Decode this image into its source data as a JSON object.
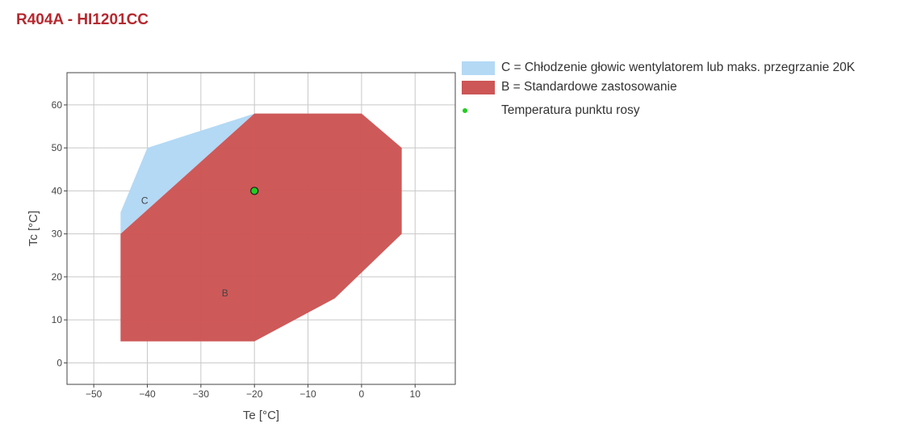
{
  "title": "R404A - HI1201CC",
  "chart_data": {
    "type": "area",
    "xlabel": "Te [°C]",
    "ylabel": "Tc [°C]",
    "xlim": [
      -55,
      17.5
    ],
    "ylim": [
      -5,
      67.5
    ],
    "x_ticks": [
      -50,
      -40,
      -30,
      -20,
      -10,
      0,
      10
    ],
    "x_tick_labels": [
      "−50",
      "−40",
      "−30",
      "−20",
      "−10",
      "0",
      "10"
    ],
    "y_ticks": [
      0,
      10,
      20,
      30,
      40,
      50,
      60
    ],
    "y_tick_labels": [
      "0",
      "10",
      "20",
      "30",
      "40",
      "50",
      "60"
    ],
    "grid": true,
    "legend_placement": "right",
    "series": [
      {
        "name": "C = Chłodzenie głowic wentylatorem lub maks. przegrzanie 20K",
        "label": "C",
        "label_at": [
          -40.5,
          37
        ],
        "color": "#b3d9f5",
        "points": [
          [
            -45,
            30
          ],
          [
            -45,
            35
          ],
          [
            -40,
            50
          ],
          [
            -20,
            58
          ],
          [
            -45,
            30
          ]
        ]
      },
      {
        "name": "B = Standardowe zastosowanie",
        "label": "B",
        "label_at": [
          -25.5,
          15.5
        ],
        "color": "#cd5656",
        "points": [
          [
            -45,
            5
          ],
          [
            -45,
            30
          ],
          [
            -20,
            58
          ],
          [
            0,
            58
          ],
          [
            7.5,
            50
          ],
          [
            7.5,
            30
          ],
          [
            -5,
            15
          ],
          [
            -20,
            5
          ],
          [
            -45,
            5
          ]
        ]
      },
      {
        "name": "Temperatura punktu rosy",
        "type": "scatter",
        "color": "#22cc22",
        "points": [
          [
            -20,
            40
          ]
        ]
      }
    ]
  }
}
